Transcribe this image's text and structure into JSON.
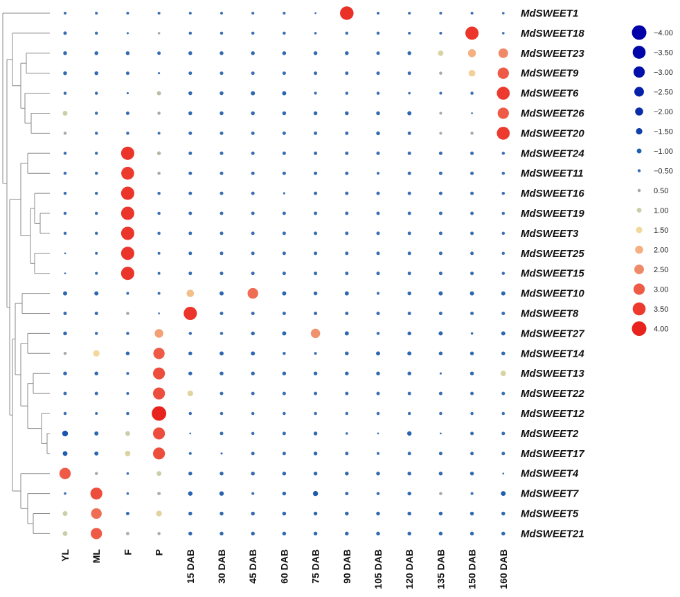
{
  "chart_data": {
    "type": "bubble-heatmap",
    "title": "",
    "columns": [
      "YL",
      "ML",
      "F",
      "P",
      "15 DAB",
      "30 DAB",
      "45 DAB",
      "60 DAB",
      "75 DAB",
      "90 DAB",
      "105 DAB",
      "120 DAB",
      "135 DAB",
      "150 DAB",
      "160 DAB"
    ],
    "rows": [
      "MdSWEET1",
      "MdSWEET18",
      "MdSWEET23",
      "MdSWEET9",
      "MdSWEET6",
      "MdSWEET26",
      "MdSWEET20",
      "MdSWEET24",
      "MdSWEET11",
      "MdSWEET16",
      "MdSWEET19",
      "MdSWEET3",
      "MdSWEET25",
      "MdSWEET15",
      "MdSWEET10",
      "MdSWEET8",
      "MdSWEET27",
      "MdSWEET14",
      "MdSWEET13",
      "MdSWEET22",
      "MdSWEET12",
      "MdSWEET2",
      "MdSWEET17",
      "MdSWEET4",
      "MdSWEET7",
      "MdSWEET5",
      "MdSWEET21"
    ],
    "values": [
      [
        -0.4,
        -0.4,
        -0.4,
        -0.4,
        -0.4,
        -0.4,
        -0.4,
        -0.4,
        -0.1,
        3.7,
        -0.4,
        -0.4,
        -0.4,
        -0.4,
        -0.3
      ],
      [
        -0.6,
        -0.5,
        -0.2,
        0.3,
        -0.5,
        -0.5,
        -0.5,
        -0.5,
        -0.3,
        -0.5,
        -0.5,
        -0.4,
        -0.4,
        3.6,
        -0.3
      ],
      [
        -0.7,
        -0.7,
        -0.7,
        -0.6,
        -0.7,
        -0.7,
        -0.7,
        -0.7,
        -0.7,
        -0.7,
        -0.6,
        -0.7,
        1.2,
        2.0,
        2.5
      ],
      [
        -0.7,
        -0.7,
        -0.6,
        -0.2,
        -0.6,
        -0.6,
        -0.6,
        -0.6,
        -0.6,
        -0.6,
        -0.6,
        -0.6,
        0.5,
        1.6,
        3.0
      ],
      [
        -0.5,
        -0.5,
        -0.2,
        0.8,
        -0.7,
        -0.7,
        -0.8,
        -0.8,
        -0.4,
        -0.5,
        -0.5,
        -0.3,
        -0.4,
        -0.5,
        3.5
      ],
      [
        1.0,
        -0.5,
        -0.6,
        0.5,
        -0.7,
        -0.7,
        -0.7,
        -0.7,
        -0.7,
        -0.7,
        -0.7,
        -0.8,
        0.4,
        -0.1,
        3.0
      ],
      [
        0.5,
        -0.5,
        -0.5,
        -0.4,
        -0.6,
        -0.6,
        -0.6,
        -0.6,
        -0.6,
        -0.6,
        -0.7,
        -0.6,
        0.4,
        0.5,
        3.5
      ],
      [
        -0.5,
        -0.5,
        3.6,
        0.7,
        -0.6,
        -0.6,
        -0.6,
        -0.6,
        -0.6,
        -0.6,
        -0.6,
        -0.6,
        -0.6,
        -0.6,
        -0.5
      ],
      [
        -0.5,
        -0.5,
        3.5,
        0.5,
        -0.6,
        -0.6,
        -0.6,
        -0.6,
        -0.6,
        -0.6,
        -0.4,
        -0.6,
        -0.6,
        -0.6,
        -0.5
      ],
      [
        -0.5,
        -0.5,
        3.6,
        -0.5,
        -0.6,
        -0.6,
        -0.6,
        -0.2,
        -0.6,
        -0.6,
        -0.6,
        -0.6,
        -0.6,
        -0.6,
        -0.5
      ],
      [
        -0.5,
        -0.5,
        3.6,
        -0.5,
        -0.6,
        -0.6,
        -0.6,
        -0.6,
        -0.6,
        -0.6,
        -0.6,
        -0.6,
        -0.6,
        -0.6,
        -0.5
      ],
      [
        -0.5,
        -0.5,
        3.6,
        -0.5,
        -0.6,
        -0.6,
        -0.6,
        -0.6,
        -0.6,
        -0.6,
        -0.6,
        -0.6,
        -0.6,
        -0.6,
        -0.5
      ],
      [
        -0.1,
        -0.4,
        3.6,
        -0.4,
        -0.6,
        -0.6,
        -0.6,
        -0.6,
        -0.6,
        -0.6,
        -0.6,
        -0.6,
        -0.6,
        -0.6,
        -0.5
      ],
      [
        -0.1,
        -0.4,
        3.6,
        -0.4,
        -0.6,
        -0.6,
        -0.6,
        -0.6,
        -0.6,
        -0.6,
        -0.6,
        -0.6,
        -0.6,
        -0.6,
        -0.5
      ],
      [
        -0.8,
        -0.8,
        -0.4,
        -0.4,
        1.8,
        -0.8,
        2.8,
        -0.8,
        -0.7,
        -0.8,
        -0.4,
        -0.7,
        -0.8,
        -0.8,
        -0.8
      ],
      [
        -0.6,
        -0.6,
        0.5,
        -0.1,
        3.6,
        -0.6,
        -0.6,
        -0.6,
        -0.6,
        -0.6,
        -0.6,
        -0.6,
        -0.6,
        -0.6,
        -0.6
      ],
      [
        -0.7,
        -0.5,
        -0.5,
        2.2,
        -0.5,
        -0.5,
        -0.7,
        -0.8,
        2.4,
        -0.8,
        -0.5,
        -0.7,
        -0.8,
        -0.3,
        -0.8
      ],
      [
        0.5,
        1.5,
        -0.7,
        3.0,
        -0.7,
        -0.8,
        -0.8,
        -0.5,
        -0.4,
        -0.7,
        -0.8,
        -0.8,
        -0.7,
        -0.7,
        -0.7
      ],
      [
        -0.7,
        -0.7,
        -0.4,
        3.2,
        -0.7,
        -0.7,
        -0.7,
        -0.7,
        -0.7,
        -0.7,
        -0.7,
        -0.7,
        -0.2,
        -0.7,
        1.2
      ],
      [
        -0.6,
        -0.6,
        -0.4,
        3.2,
        1.3,
        -0.6,
        -0.6,
        -0.6,
        -0.6,
        -0.6,
        -0.6,
        -0.6,
        -0.6,
        -0.6,
        -0.6
      ],
      [
        -0.5,
        -0.4,
        -0.5,
        4.0,
        -0.5,
        -0.5,
        -0.5,
        -0.5,
        -0.5,
        -0.5,
        -0.5,
        -0.5,
        -0.5,
        -0.5,
        -0.5
      ],
      [
        -1.3,
        -0.8,
        1.0,
        3.2,
        -0.1,
        -0.6,
        -0.5,
        -0.6,
        -0.7,
        -0.3,
        -0.1,
        -0.9,
        -0.1,
        -0.6,
        -0.6
      ],
      [
        -1.0,
        -0.8,
        1.2,
        3.2,
        -0.4,
        -0.2,
        -0.6,
        -0.6,
        -0.7,
        -0.6,
        -0.4,
        -0.6,
        -0.6,
        -0.6,
        -0.6
      ],
      [
        3.0,
        0.5,
        -0.3,
        1.0,
        -0.7,
        -0.7,
        -0.7,
        -0.7,
        -0.7,
        -0.7,
        -0.7,
        -0.7,
        -0.7,
        -0.7,
        -0.1
      ],
      [
        -0.3,
        3.2,
        -0.3,
        0.6,
        -0.9,
        -0.9,
        -0.4,
        -0.7,
        -1.1,
        -0.6,
        -0.5,
        -0.7,
        0.5,
        -0.4,
        -1.0
      ],
      [
        1.0,
        2.8,
        -0.6,
        1.3,
        -0.7,
        -0.7,
        -0.7,
        -0.7,
        -0.7,
        -0.7,
        -0.7,
        -0.7,
        -0.7,
        -0.7,
        -0.7
      ],
      [
        1.0,
        3.0,
        0.6,
        0.5,
        -0.7,
        -0.7,
        -0.7,
        -0.7,
        -0.7,
        -0.7,
        -0.7,
        -0.7,
        -0.7,
        -0.7,
        -0.7
      ]
    ],
    "legend": {
      "entries": [
        "-4.00",
        "-3.50",
        "-3.00",
        "-2.50",
        "-2.00",
        "-1.50",
        "-1.00",
        "-0.50",
        "0.50",
        "1.00",
        "1.50",
        "2.00",
        "2.50",
        "3.00",
        "3.50",
        "4.00"
      ],
      "values": [
        -4.0,
        -3.5,
        -3.0,
        -2.5,
        -2.0,
        -1.5,
        -1.0,
        -0.5,
        0.5,
        1.0,
        1.5,
        2.0,
        2.5,
        3.0,
        3.5,
        4.0
      ],
      "position": "right"
    },
    "colors": {
      "-4": "#0000a8",
      "-2": "#1538a8",
      "-1": "#1f5fb0",
      "-0.5": "#3d70b2",
      "0.5": "#a8a8a8",
      "1": "#c9cfa8",
      "1.5": "#f2d89c",
      "2": "#f4b081",
      "2.5": "#ef8a68",
      "3": "#ee5a45",
      "3.5": "#ec3a2f",
      "4": "#e8231d"
    },
    "dendrogram": {
      "left": [
        "MdSWEET1",
        "rest"
      ],
      "groups": [
        [
          "MdSWEET18",
          [
            "MdSWEET23",
            "MdSWEET9"
          ],
          [
            "MdSWEET6",
            "MdSWEET26",
            "MdSWEET20"
          ]
        ],
        [
          [
            "MdSWEET24",
            "MdSWEET11"
          ],
          [
            "MdSWEET16",
            [
              "MdSWEET19",
              "MdSWEET3"
            ]
          ],
          [
            "MdSWEET25",
            "MdSWEET15"
          ]
        ],
        [
          [
            "MdSWEET10",
            "MdSWEET8"
          ]
        ],
        [
          [
            "MdSWEET27",
            "MdSWEET14"
          ],
          [
            "MdSWEET13",
            "MdSWEET22"
          ],
          [
            "MdSWEET12",
            [
              "MdSWEET2",
              "MdSWEET17"
            ]
          ]
        ],
        [
          "MdSWEET4",
          [
            "MdSWEET7",
            [
              "MdSWEET5",
              "MdSWEET21"
            ]
          ]
        ]
      ]
    }
  }
}
